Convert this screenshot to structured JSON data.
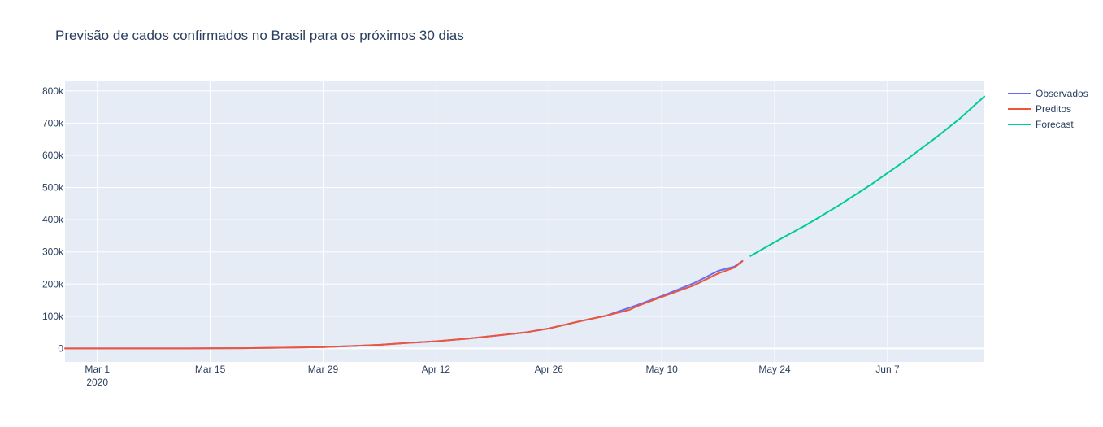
{
  "chart_data": {
    "type": "line",
    "title": "Previsão de cados confirmados no Brasil para os próximos 30 dias",
    "xlabel": "",
    "ylabel": "",
    "x_axis": {
      "range": [
        "2020-02-26",
        "2020-06-19"
      ],
      "ticks": [
        {
          "date": "2020-03-01",
          "label": "Mar 1",
          "sublabel": "2020"
        },
        {
          "date": "2020-03-15",
          "label": "Mar 15"
        },
        {
          "date": "2020-03-29",
          "label": "Mar 29"
        },
        {
          "date": "2020-04-12",
          "label": "Apr 12"
        },
        {
          "date": "2020-04-26",
          "label": "Apr 26"
        },
        {
          "date": "2020-05-10",
          "label": "May 10"
        },
        {
          "date": "2020-05-24",
          "label": "May 24"
        },
        {
          "date": "2020-06-07",
          "label": "Jun 7"
        }
      ]
    },
    "y_axis": {
      "range": [
        -42000,
        830000
      ],
      "ticks": [
        {
          "value": 0,
          "label": "0"
        },
        {
          "value": 100000,
          "label": "100k"
        },
        {
          "value": 200000,
          "label": "200k"
        },
        {
          "value": 300000,
          "label": "300k"
        },
        {
          "value": 400000,
          "label": "400k"
        },
        {
          "value": 500000,
          "label": "500k"
        },
        {
          "value": 600000,
          "label": "600k"
        },
        {
          "value": 700000,
          "label": "700k"
        },
        {
          "value": 800000,
          "label": "800k"
        }
      ]
    },
    "grid": true,
    "legend_position": "top-right",
    "series": [
      {
        "name": "Observados",
        "color": "#636efa",
        "points": [
          [
            "2020-02-26",
            1
          ],
          [
            "2020-03-05",
            8
          ],
          [
            "2020-03-12",
            77
          ],
          [
            "2020-03-19",
            621
          ],
          [
            "2020-03-26",
            2915
          ],
          [
            "2020-03-29",
            4256
          ],
          [
            "2020-04-02",
            7910
          ],
          [
            "2020-04-05",
            11130
          ],
          [
            "2020-04-09",
            17857
          ],
          [
            "2020-04-12",
            22169
          ],
          [
            "2020-04-16",
            30425
          ],
          [
            "2020-04-19",
            38654
          ],
          [
            "2020-04-23",
            49492
          ],
          [
            "2020-04-26",
            61888
          ],
          [
            "2020-04-30",
            85380
          ],
          [
            "2020-05-03",
            101147
          ],
          [
            "2020-05-07",
            135106
          ],
          [
            "2020-05-10",
            162699
          ],
          [
            "2020-05-14",
            202918
          ],
          [
            "2020-05-17",
            241080
          ],
          [
            "2020-05-19",
            254220
          ],
          [
            "2020-05-20",
            271628
          ]
        ]
      },
      {
        "name": "Preditos",
        "color": "#ef553b",
        "points": [
          [
            "2020-02-26",
            1
          ],
          [
            "2020-03-05",
            8
          ],
          [
            "2020-03-12",
            77
          ],
          [
            "2020-03-19",
            621
          ],
          [
            "2020-03-26",
            2915
          ],
          [
            "2020-03-29",
            4256
          ],
          [
            "2020-04-02",
            7910
          ],
          [
            "2020-04-05",
            11130
          ],
          [
            "2020-04-09",
            17857
          ],
          [
            "2020-04-12",
            22169
          ],
          [
            "2020-04-16",
            30425
          ],
          [
            "2020-04-19",
            38654
          ],
          [
            "2020-04-23",
            49492
          ],
          [
            "2020-04-26",
            61888
          ],
          [
            "2020-04-30",
            85380
          ],
          [
            "2020-05-03",
            101147
          ],
          [
            "2020-05-06",
            120000
          ],
          [
            "2020-05-07",
            132000
          ],
          [
            "2020-05-10",
            160000
          ],
          [
            "2020-05-14",
            196000
          ],
          [
            "2020-05-17",
            233000
          ],
          [
            "2020-05-19",
            251000
          ],
          [
            "2020-05-20",
            271000
          ]
        ]
      },
      {
        "name": "Forecast",
        "color": "#00cc96",
        "points": [
          [
            "2020-05-21",
            287000
          ],
          [
            "2020-05-24",
            330000
          ],
          [
            "2020-05-28",
            385000
          ],
          [
            "2020-06-01",
            445000
          ],
          [
            "2020-06-05",
            510000
          ],
          [
            "2020-06-09",
            580000
          ],
          [
            "2020-06-13",
            655000
          ],
          [
            "2020-06-16",
            715000
          ],
          [
            "2020-06-19",
            783000
          ]
        ]
      }
    ]
  }
}
